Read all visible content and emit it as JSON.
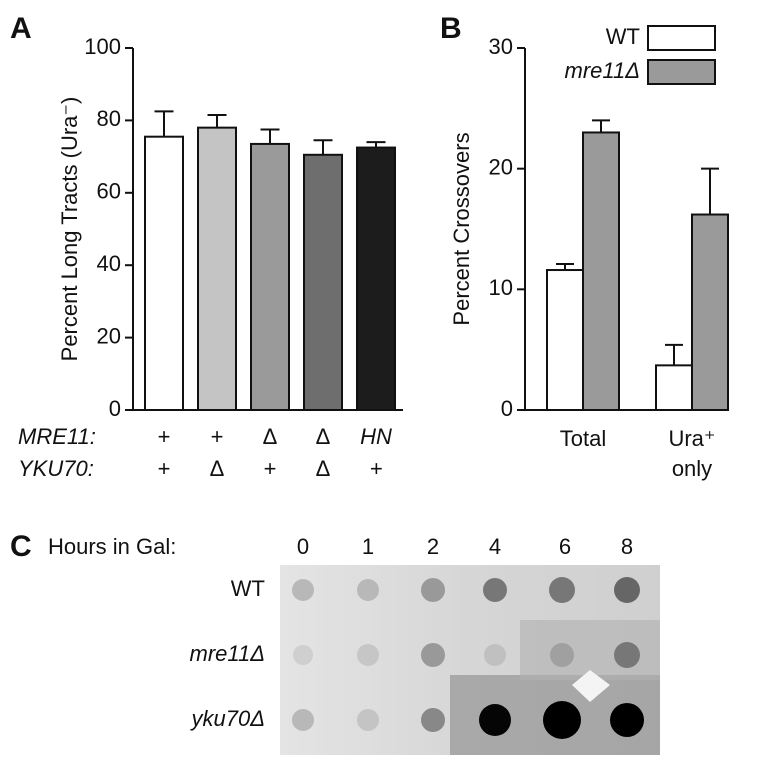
{
  "chart_data": [
    {
      "type": "bar",
      "panel": "A",
      "ylabel": "Percent Long Tracts (Ura⁻)",
      "category_rows": [
        {
          "label": "MRE11:",
          "categories": [
            "+",
            "+",
            "Δ",
            "Δ",
            "HN"
          ]
        },
        {
          "label": "YKU70:",
          "categories": [
            "+",
            "Δ",
            "+",
            "Δ",
            "+"
          ]
        }
      ],
      "values": [
        75.5,
        78,
        73.5,
        70.5,
        72.5
      ],
      "errors": [
        7,
        3.5,
        4,
        4,
        1.5
      ],
      "colors": [
        "#ffffff",
        "#c4c4c4",
        "#9a9a9a",
        "#6e6e6e",
        "#1c1c1c"
      ],
      "ylim": [
        0,
        100
      ],
      "yticks": [
        0,
        20,
        40,
        60,
        80,
        100
      ]
    },
    {
      "type": "grouped_bar",
      "panel": "B",
      "ylabel": "Percent Crossovers",
      "categories": [
        [
          "Total"
        ],
        [
          "Ura⁺",
          "only"
        ]
      ],
      "series": [
        {
          "name": "WT",
          "color": "#ffffff",
          "values": [
            11.6,
            3.7
          ],
          "errors": [
            0.5,
            1.7
          ]
        },
        {
          "name": "mre11Δ",
          "color": "#9a9a9a",
          "values": [
            23,
            16.2
          ],
          "errors": [
            1,
            3.8
          ]
        }
      ],
      "legend": "top-right",
      "ylim": [
        0,
        30
      ],
      "yticks": [
        0,
        10,
        20,
        30
      ]
    }
  ],
  "blot": {
    "panel": "C",
    "title": "Hours in Gal:",
    "hours": [
      "0",
      "1",
      "2",
      "4",
      "6",
      "8"
    ],
    "rows": [
      "WT",
      "mre11Δ",
      "yku70Δ"
    ]
  }
}
